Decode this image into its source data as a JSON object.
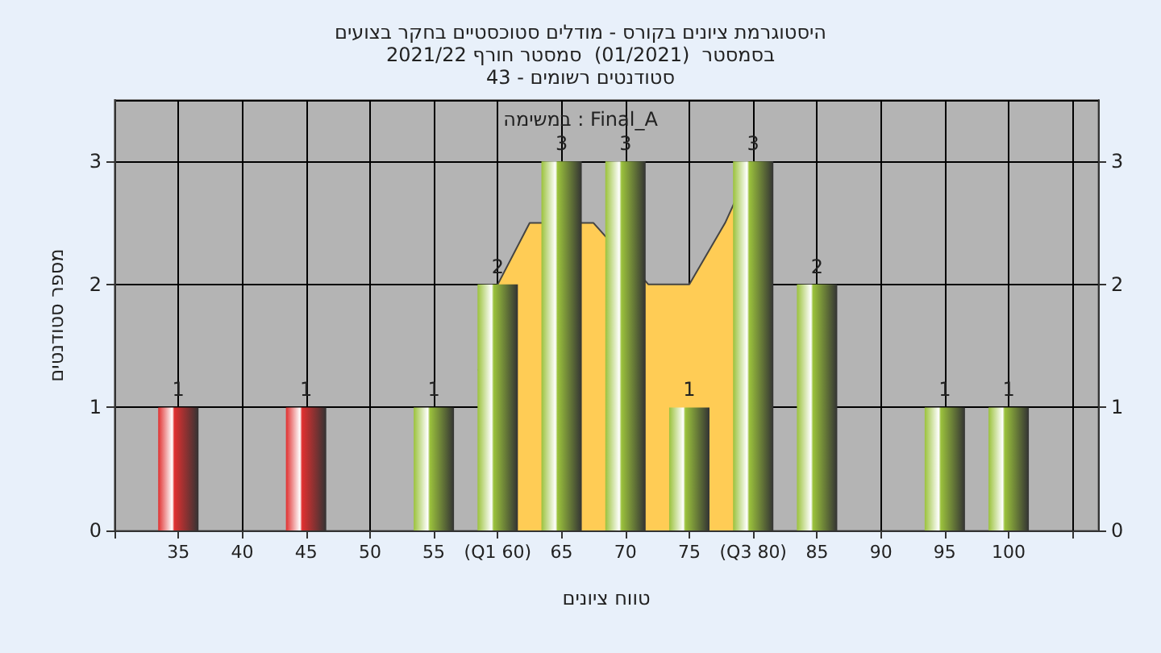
{
  "chart_data": {
    "type": "bar",
    "title": "היסטוגרמת ציונים בקורס - מודלים סטוכסטיים בחקר בצועים\nבסמסטר  (01/2021)  סמסטר חורף 2021/22\nסטודנטים רשומים - 43",
    "annotations": [
      "במשימה : Final_A"
    ],
    "xlabel": "טווח ציונים",
    "ylabel": "מספר סטודנטים",
    "x": [
      35,
      45,
      55,
      60,
      65,
      70,
      75,
      80,
      85,
      95,
      100
    ],
    "series": [
      {
        "type": "area",
        "color": "#ffcc55",
        "x": [
          58.5,
          60,
          62.5,
          67.5,
          71.8,
          75,
          77.8,
          80
        ],
        "values": [
          1.3,
          2,
          2.5,
          2.5,
          2,
          2,
          2.5,
          3
        ]
      },
      {
        "values": [
          1,
          1,
          1,
          2,
          3,
          3,
          1,
          3,
          2,
          1,
          1
        ],
        "value_labels": [
          "1",
          "1",
          "1",
          "2",
          "3",
          "3",
          "1",
          "3",
          "2",
          "1",
          "1"
        ],
        "colors": [
          "#e03030",
          "#e03030",
          "#9bc23c",
          "#9bc23c",
          "#9bc23c",
          "#9bc23c",
          "#9bc23c",
          "#9bc23c",
          "#9bc23c",
          "#9bc23c",
          "#9bc23c"
        ]
      }
    ],
    "xlim": [
      30,
      107
    ],
    "xticks": [
      35,
      40,
      45,
      50,
      55,
      {
        "value": 60,
        "label": "(Q1 60)"
      },
      65,
      70,
      75,
      {
        "value": 80,
        "label": "(Q3 80)"
      },
      85,
      90,
      95,
      100,
      {
        "value": 105,
        "label": null
      }
    ],
    "ylim": [
      0,
      3.5
    ],
    "yticks": [
      0,
      1,
      2,
      3
    ],
    "y2lim": [
      0,
      3.5
    ],
    "y2ticks": [
      0,
      1,
      2,
      3
    ],
    "grid": true
  }
}
